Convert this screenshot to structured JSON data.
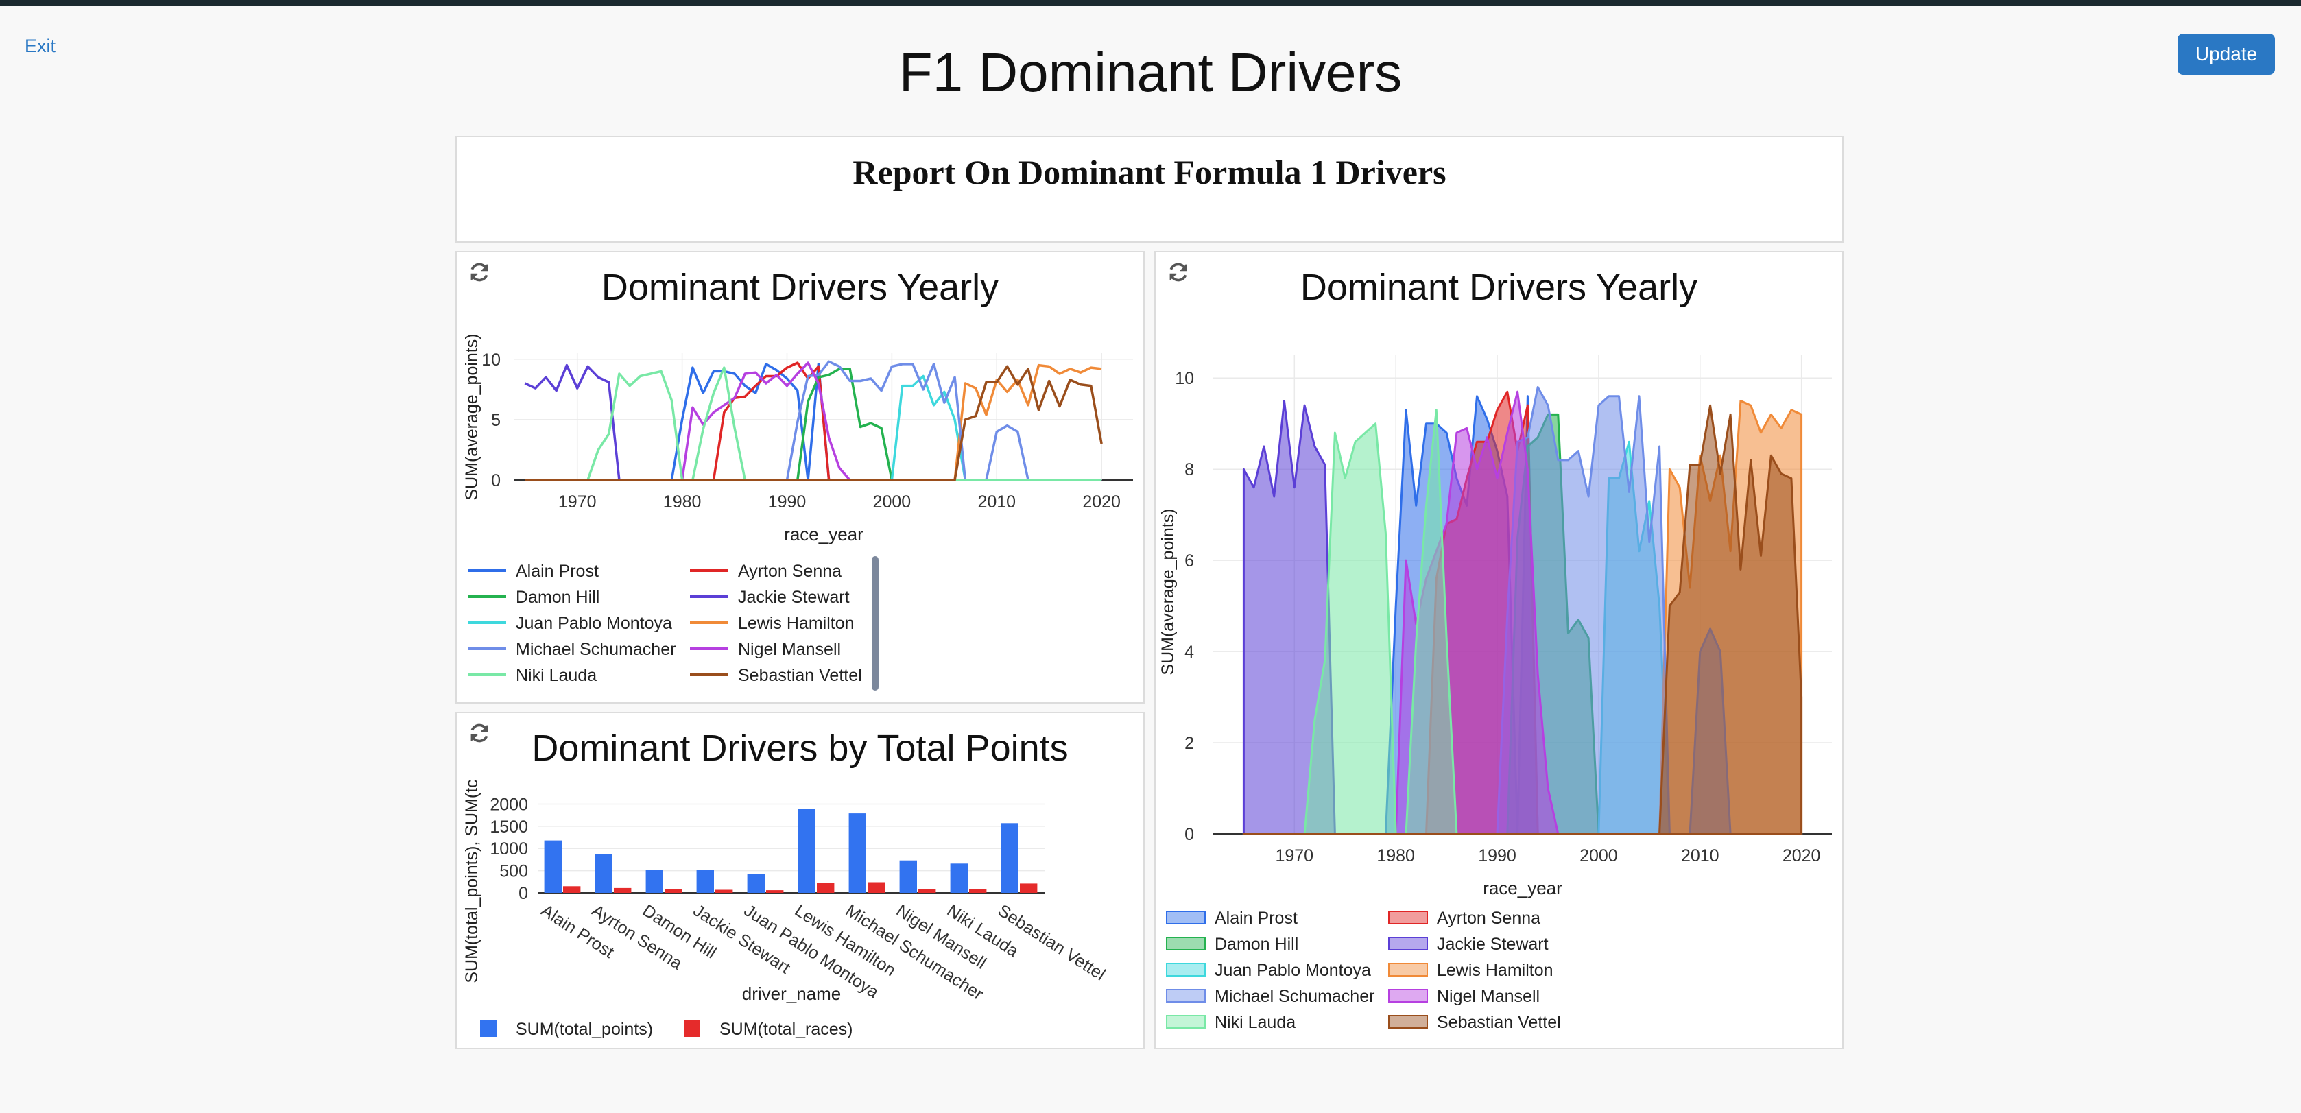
{
  "header": {
    "exit_label": "Exit",
    "title": "F1 Dominant Drivers",
    "update_label": "Update"
  },
  "report": {
    "heading": "Report On Dominant Formula 1 Drivers"
  },
  "colors": {
    "Alain Prost": "#2f6ee9",
    "Ayrton Senna": "#e02626",
    "Damon Hill": "#24b24f",
    "Jackie Stewart": "#5b3fd6",
    "Juan Pablo Montoya": "#3ed8dd",
    "Lewis Hamilton": "#f08a38",
    "Michael Schumacher": "#6f8de8",
    "Nigel Mansell": "#b640e0",
    "Niki Lauda": "#79e8a6",
    "Sebastian Vettel": "#9a4e1c",
    "total_points": "#3273f0",
    "total_races": "#e52b2b"
  },
  "chart_data": [
    {
      "type": "line",
      "title": "Dominant Drivers Yearly",
      "xlabel": "race_year",
      "ylabel": "SUM(average_points)",
      "xlim": [
        1964,
        2023
      ],
      "ylim": [
        0,
        10.5
      ],
      "xticks": [
        "1970",
        "1980",
        "1990",
        "2000",
        "2010",
        "2020"
      ],
      "yticks": [
        "0",
        "5",
        "10"
      ],
      "legend": "bottom",
      "series": [
        {
          "name": "Alain Prost",
          "points": [
            [
              1965,
              0
            ],
            [
              1979,
              0
            ],
            [
              1980,
              5
            ],
            [
              1981,
              9.3
            ],
            [
              1982,
              7.2
            ],
            [
              1983,
              9
            ],
            [
              1984,
              9
            ],
            [
              1985,
              8.8
            ],
            [
              1986,
              7.8
            ],
            [
              1987,
              7.2
            ],
            [
              1988,
              9.6
            ],
            [
              1989,
              9.1
            ],
            [
              1990,
              8.4
            ],
            [
              1991,
              7.4
            ],
            [
              1992,
              0
            ],
            [
              1993,
              9.6
            ],
            [
              1994,
              0
            ],
            [
              2020,
              0
            ]
          ]
        },
        {
          "name": "Ayrton Senna",
          "points": [
            [
              1965,
              0
            ],
            [
              1983,
              0
            ],
            [
              1984,
              5.6
            ],
            [
              1985,
              6.8
            ],
            [
              1986,
              6.9
            ],
            [
              1987,
              7.8
            ],
            [
              1988,
              8.6
            ],
            [
              1989,
              8.6
            ],
            [
              1990,
              9.3
            ],
            [
              1991,
              9.7
            ],
            [
              1992,
              8.4
            ],
            [
              1993,
              9.4
            ],
            [
              1994,
              0
            ],
            [
              2020,
              0
            ]
          ]
        },
        {
          "name": "Damon Hill",
          "points": [
            [
              1965,
              0
            ],
            [
              1991,
              0
            ],
            [
              1992,
              6.5
            ],
            [
              1993,
              8.5
            ],
            [
              1994,
              8.7
            ],
            [
              1995,
              9.2
            ],
            [
              1996,
              9.2
            ],
            [
              1997,
              4.4
            ],
            [
              1998,
              4.7
            ],
            [
              1999,
              4.3
            ],
            [
              2000,
              0
            ],
            [
              2020,
              0
            ]
          ]
        },
        {
          "name": "Jackie Stewart",
          "points": [
            [
              1965,
              8
            ],
            [
              1966,
              7.6
            ],
            [
              1967,
              8.5
            ],
            [
              1968,
              7.4
            ],
            [
              1969,
              9.5
            ],
            [
              1970,
              7.6
            ],
            [
              1971,
              9.4
            ],
            [
              1972,
              8.5
            ],
            [
              1973,
              8.1
            ],
            [
              1974,
              0
            ],
            [
              2020,
              0
            ]
          ]
        },
        {
          "name": "Juan Pablo Montoya",
          "points": [
            [
              1965,
              0
            ],
            [
              2000,
              0
            ],
            [
              2001,
              7.8
            ],
            [
              2002,
              7.8
            ],
            [
              2003,
              8.6
            ],
            [
              2004,
              6.2
            ],
            [
              2005,
              7.3
            ],
            [
              2006,
              5
            ],
            [
              2007,
              0
            ],
            [
              2020,
              0
            ]
          ]
        },
        {
          "name": "Lewis Hamilton",
          "points": [
            [
              1965,
              0
            ],
            [
              2006,
              0
            ],
            [
              2007,
              8
            ],
            [
              2008,
              7.6
            ],
            [
              2009,
              5.4
            ],
            [
              2010,
              8.3
            ],
            [
              2011,
              7.3
            ],
            [
              2012,
              8.3
            ],
            [
              2013,
              6.2
            ],
            [
              2014,
              9.5
            ],
            [
              2015,
              9.4
            ],
            [
              2016,
              8.8
            ],
            [
              2017,
              9.2
            ],
            [
              2018,
              8.9
            ],
            [
              2019,
              9.3
            ],
            [
              2020,
              9.2
            ]
          ]
        },
        {
          "name": "Michael Schumacher",
          "points": [
            [
              1965,
              0
            ],
            [
              1990,
              0
            ],
            [
              1991,
              4.8
            ],
            [
              1992,
              8.6
            ],
            [
              1993,
              8.7
            ],
            [
              1994,
              9.8
            ],
            [
              1995,
              9.4
            ],
            [
              1996,
              8.2
            ],
            [
              1997,
              8.2
            ],
            [
              1998,
              8.4
            ],
            [
              1999,
              7.4
            ],
            [
              2000,
              9.4
            ],
            [
              2001,
              9.6
            ],
            [
              2002,
              9.6
            ],
            [
              2003,
              7.5
            ],
            [
              2004,
              9.6
            ],
            [
              2005,
              6.4
            ],
            [
              2006,
              8.5
            ],
            [
              2007,
              0
            ],
            [
              2009,
              0
            ],
            [
              2010,
              4
            ],
            [
              2011,
              4.5
            ],
            [
              2012,
              4
            ],
            [
              2013,
              0
            ],
            [
              2020,
              0
            ]
          ]
        },
        {
          "name": "Nigel Mansell",
          "points": [
            [
              1965,
              0
            ],
            [
              1980,
              0
            ],
            [
              1981,
              6
            ],
            [
              1982,
              4.6
            ],
            [
              1983,
              5.6
            ],
            [
              1984,
              6.2
            ],
            [
              1985,
              6.8
            ],
            [
              1986,
              8.8
            ],
            [
              1987,
              8.9
            ],
            [
              1988,
              8
            ],
            [
              1989,
              8.7
            ],
            [
              1990,
              7.8
            ],
            [
              1991,
              8.8
            ],
            [
              1992,
              9.7
            ],
            [
              1993,
              8
            ],
            [
              1994,
              3.5
            ],
            [
              1995,
              1
            ],
            [
              1996,
              0
            ],
            [
              2020,
              0
            ]
          ]
        },
        {
          "name": "Niki Lauda",
          "points": [
            [
              1965,
              0
            ],
            [
              1971,
              0
            ],
            [
              1972,
              2.5
            ],
            [
              1973,
              3.8
            ],
            [
              1974,
              8.8
            ],
            [
              1975,
              7.8
            ],
            [
              1976,
              8.6
            ],
            [
              1977,
              8.8
            ],
            [
              1978,
              9
            ],
            [
              1979,
              6.6
            ],
            [
              1980,
              0
            ],
            [
              1981,
              0
            ],
            [
              1982,
              4.2
            ],
            [
              1983,
              7.2
            ],
            [
              1984,
              9.3
            ],
            [
              1985,
              4.3
            ],
            [
              1986,
              0
            ],
            [
              2020,
              0
            ]
          ]
        },
        {
          "name": "Sebastian Vettel",
          "points": [
            [
              1965,
              0
            ],
            [
              2006,
              0
            ],
            [
              2007,
              5
            ],
            [
              2008,
              5.3
            ],
            [
              2009,
              8.1
            ],
            [
              2010,
              8.1
            ],
            [
              2011,
              9.4
            ],
            [
              2012,
              7.9
            ],
            [
              2013,
              9.2
            ],
            [
              2014,
              5.8
            ],
            [
              2015,
              8.2
            ],
            [
              2016,
              6.1
            ],
            [
              2017,
              8.3
            ],
            [
              2018,
              7.9
            ],
            [
              2019,
              7.8
            ],
            [
              2020,
              3
            ]
          ]
        }
      ]
    },
    {
      "type": "bar",
      "title": "Dominant Drivers by Total Points",
      "xlabel": "driver_name",
      "ylabel": "SUM(total_points), SUM(tc",
      "ylim": [
        0,
        2100
      ],
      "yticks": [
        "0",
        "500",
        "1000",
        "1500",
        "2000"
      ],
      "legend": "bottom",
      "categories": [
        "Alain Prost",
        "Ayrton Senna",
        "Damon Hill",
        "Jackie Stewart",
        "Juan Pablo Montoya",
        "Lewis Hamilton",
        "Michael Schumacher",
        "Nigel Mansell",
        "Niki Lauda",
        "Sebastian Vettel"
      ],
      "series": [
        {
          "name": "SUM(total_points)",
          "values": [
            1180,
            880,
            520,
            510,
            420,
            1900,
            1790,
            730,
            660,
            1570
          ]
        },
        {
          "name": "SUM(total_races)",
          "values": [
            150,
            110,
            90,
            70,
            60,
            230,
            240,
            90,
            80,
            210
          ]
        }
      ]
    },
    {
      "type": "area",
      "title": "Dominant Drivers Yearly",
      "xlabel": "race_year",
      "ylabel": "SUM(average_points)",
      "xlim": [
        1962,
        2023
      ],
      "ylim": [
        0,
        10.5
      ],
      "xticks": [
        "1970",
        "1980",
        "1990",
        "2000",
        "2010",
        "2020"
      ],
      "yticks": [
        "0",
        "2",
        "4",
        "6",
        "8",
        "10"
      ],
      "legend": "bottom",
      "series": "same as chart 1"
    }
  ]
}
